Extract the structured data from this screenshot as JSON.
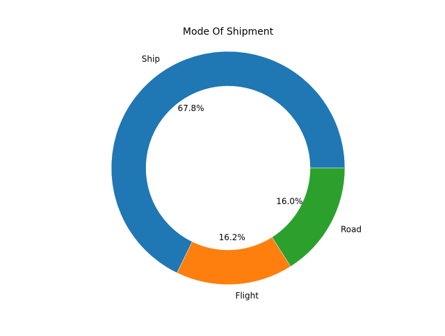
{
  "chart_data": {
    "type": "pie",
    "variant": "donut",
    "title": "Mode Of Shipment",
    "categories": [
      "Ship",
      "Flight",
      "Road"
    ],
    "values": [
      67.8,
      16.2,
      16.0
    ],
    "value_labels": [
      "67.8%",
      "16.2%",
      "16.0%"
    ],
    "colors": [
      "#1f77b4",
      "#ff7f0e",
      "#2ca02c"
    ],
    "start_angle_deg": 0,
    "direction": "counterclockwise",
    "legend": "none"
  }
}
